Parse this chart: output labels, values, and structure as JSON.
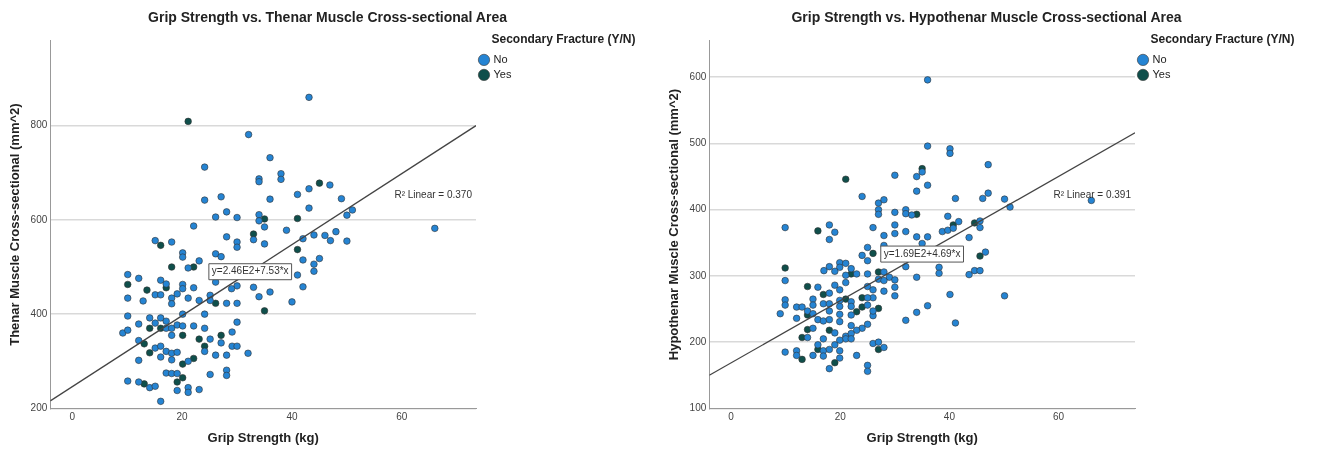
{
  "chart_data": [
    {
      "type": "scatter",
      "title": "Grip Strength vs. Thenar Muscle Cross-sectional Area",
      "xlabel": "Grip Strength (kg)",
      "ylabel": "Thenar Muscle Cross-sectional (mm^2)",
      "legend_title": "Secondary Fracture (Y/N)",
      "legend": "right",
      "grid": "y",
      "marker": "circle",
      "xlim": [
        -4,
        73.5
      ],
      "xticks": [
        0,
        20,
        40,
        60
      ],
      "ylim": [
        200,
        980
      ],
      "yticks": [
        200,
        400,
        600,
        800
      ],
      "series": [
        {
          "name": "No",
          "color": "#2584d3",
          "x": [
            43.1,
            32.1,
            36.0,
            24.1,
            34.0,
            34.0,
            38.0,
            38.0,
            46.9,
            43.1,
            41.0,
            24.1,
            27.1,
            36.0,
            43.1,
            28.1,
            26.1,
            30.0,
            34.0,
            34.0,
            22.1,
            39.0,
            28.1,
            33.0,
            30.0,
            30.0,
            35.0,
            35.0,
            42.0,
            15.1,
            18.1,
            20.1,
            20.1,
            23.1,
            26.1,
            27.1,
            21.1,
            41.0,
            10.1,
            12.1,
            16.1,
            17.1,
            20.1,
            20.1,
            22.1,
            26.1,
            30.0,
            29.0,
            33.0,
            36.0,
            10.1,
            12.9,
            15.1,
            16.1,
            18.1,
            18.1,
            19.1,
            21.1,
            23.1,
            25.1,
            25.1,
            28.1,
            30.0,
            34.0,
            40.0,
            10.1,
            12.1,
            14.1,
            9.2,
            10.1,
            12.1,
            15.1,
            16.1,
            17.1,
            17.1,
            18.1,
            18.1,
            19.1,
            20.1,
            20.1,
            22.1,
            24.1,
            24.1,
            25.1,
            27.1,
            29.1,
            30.0,
            12.1,
            15.1,
            16.1,
            16.1,
            17.1,
            18.1,
            18.1,
            19.1,
            21.1,
            24.1,
            26.1,
            28.1,
            29.1,
            30.0,
            32.0,
            10.1,
            12.1,
            14.1,
            15.1,
            17.1,
            18.1,
            19.1,
            21.1,
            21.1,
            23.1,
            25.1,
            28.1,
            28.1,
            19.1,
            16.1,
            49.0,
            50.0,
            51.0,
            46.0,
            47.0,
            48.0,
            50.0,
            44.0,
            45.0,
            44.0,
            44.0,
            42.0,
            42.0,
            66.0
          ],
          "values": [
            860,
            781,
            732,
            712,
            687,
            681,
            698,
            686,
            674,
            666,
            654,
            642,
            649,
            644,
            625,
            617,
            606,
            605,
            611,
            598,
            587,
            578,
            564,
            558,
            553,
            542,
            585,
            549,
            560,
            556,
            553,
            530,
            521,
            513,
            528,
            522,
            498,
            483,
            484,
            476,
            472,
            464,
            463,
            454,
            456,
            468,
            460,
            454,
            457,
            447,
            434,
            428,
            441,
            441,
            434,
            422,
            443,
            434,
            429,
            440,
            429,
            423,
            423,
            437,
            426,
            396,
            379,
            392,
            360,
            366,
            344,
            381,
            392,
            385,
            370,
            370,
            355,
            377,
            400,
            375,
            375,
            400,
            370,
            347,
            339,
            362,
            383,
            302,
            328,
            332,
            309,
            321,
            317,
            303,
            319,
            300,
            321,
            313,
            313,
            332,
            332,
            317,
            258,
            256,
            244,
            247,
            275,
            274,
            274,
            244,
            234,
            240,
            272,
            281,
            270,
            238,
            215,
            645,
            610,
            621,
            567,
            556,
            575,
            555,
            568,
            518,
            506,
            491,
            458,
            515,
            582
          ]
        },
        {
          "name": "Yes",
          "color": "#0f4f4b",
          "x": [
            21.1,
            45.0,
            35.0,
            41.0,
            16.1,
            18.1,
            22.1,
            10.1,
            17.1,
            13.6,
            26.1,
            35.0,
            13.1,
            14.1,
            16.1,
            20.1,
            23.1,
            27.1,
            14.1,
            20.1,
            22.1,
            24.1,
            13.1,
            19.1,
            20.1,
            41.0,
            33.0
          ],
          "values": [
            809,
            678,
            602,
            603,
            546,
            500,
            500,
            463,
            456,
            451,
            423,
            407,
            337,
            370,
            370,
            355,
            347,
            355,
            318,
            294,
            306,
            332,
            252,
            256,
            265,
            537,
            570
          ]
        },
        {
          "type": "line",
          "color": "#444444",
          "marker": "none",
          "x": [
            -4,
            73.5
          ],
          "values": [
            216,
            800
          ]
        }
      ],
      "annotations": [
        {
          "text": "y=2.46E2+7.53*x",
          "x": 32.4,
          "y": 490
        },
        "R² Linear = 0.370"
      ]
    },
    {
      "type": "scatter",
      "title": "Grip Strength vs. Hypothenar Muscle Cross-sectional Area",
      "xlabel": "Grip Strength (kg)",
      "ylabel": "Hypothenar Muscle Cross-sectional (mm^2)",
      "legend_title": "Secondary Fracture (Y/N)",
      "legend": "right",
      "grid": "y",
      "marker": "circle",
      "xlim": [
        -4,
        74
      ],
      "xticks": [
        0,
        20,
        40,
        60
      ],
      "ylim": [
        100,
        655
      ],
      "yticks": [
        100,
        200,
        300,
        400,
        500,
        600
      ],
      "series": [
        {
          "name": "No",
          "color": "#2584d3",
          "x": [
            36.0,
            36.0,
            35.0,
            34.0,
            36.0,
            34.0,
            30.0,
            24.0,
            27.0,
            28.0,
            27.0,
            27.0,
            30.0,
            32.0,
            32.0,
            33.1,
            9.9,
            18.0,
            19.0,
            18.0,
            26.0,
            30.0,
            30.0,
            32.0,
            34.0,
            36.0,
            28.0,
            28.0,
            35.0,
            25.0,
            24.0,
            25.0,
            32.0,
            19.9,
            21.0,
            22.0,
            19.9,
            18.0,
            17.0,
            19.0,
            21.0,
            21.0,
            23.0,
            25.0,
            28.0,
            29.0,
            27.0,
            28.0,
            34.0,
            30.0,
            30.0,
            30.0,
            9.9,
            15.9,
            19.0,
            18.0,
            19.9,
            25.0,
            26.0,
            25.0,
            28.0,
            26.0,
            9.9,
            9.9,
            9.0,
            12.0,
            13.0,
            14.0,
            15.0,
            15.0,
            16.9,
            18.0,
            18.0,
            19.9,
            19.9,
            22.0,
            22.0,
            25.0,
            26.0,
            26.0,
            12.0,
            15.0,
            15.9,
            16.9,
            18.0,
            19.9,
            19.9,
            22.0,
            25.0,
            24.0,
            22.0,
            23.0,
            21.0,
            21.0,
            14.0,
            15.0,
            16.9,
            19.0,
            19.9,
            22.0,
            22.0,
            9.9,
            12.0,
            12.0,
            15.9,
            15.0,
            16.9,
            16.9,
            18.0,
            19.0,
            18.0,
            19.9,
            19.9,
            23.0,
            26.0,
            27.0,
            28.0,
            25.0,
            25.0,
            32.0,
            34.0,
            36.0,
            40.1,
            40.1,
            47.1,
            41.1,
            46.1,
            47.1,
            50.1,
            51.1,
            66.0,
            39.7,
            38.7,
            39.7,
            40.7,
            41.7,
            45.6,
            45.6,
            43.6,
            38.1,
            38.1,
            43.6,
            44.6,
            45.6,
            46.6,
            40.1,
            50.1,
            41.1
          ],
          "values": [
            596,
            496,
            457,
            450,
            437,
            428,
            452,
            420,
            410,
            415,
            400,
            393,
            396,
            400,
            394,
            392,
            373,
            377,
            366,
            355,
            373,
            377,
            364,
            367,
            359,
            359,
            361,
            346,
            349,
            343,
            331,
            323,
            314,
            320,
            319,
            311,
            313,
            314,
            308,
            307,
            301,
            290,
            303,
            303,
            306,
            298,
            295,
            293,
            298,
            294,
            283,
            270,
            293,
            283,
            286,
            274,
            279,
            284,
            267,
            267,
            277,
            279,
            264,
            256,
            243,
            253,
            253,
            247,
            265,
            256,
            258,
            258,
            247,
            263,
            254,
            261,
            254,
            256,
            240,
            247,
            236,
            243,
            234,
            232,
            234,
            242,
            231,
            241,
            227,
            221,
            225,
            218,
            209,
            205,
            207,
            221,
            205,
            214,
            203,
            213,
            205,
            185,
            187,
            180,
            196,
            180,
            187,
            179,
            189,
            196,
            160,
            187,
            176,
            180,
            198,
            200,
            192,
            165,
            156,
            233,
            245,
            255,
            492,
            485,
            468,
            417,
            417,
            425,
            416,
            404,
            414,
            390,
            367,
            369,
            372,
            382,
            383,
            373,
            358,
            313,
            304,
            302,
            308,
            308,
            336,
            272,
            270,
            229
          ]
        },
        {
          "name": "Yes",
          "color": "#0f4f4b",
          "x": [
            35.0,
            21.0,
            34.0,
            15.9,
            26.0,
            22.0,
            27.0,
            9.9,
            14.0,
            24.0,
            16.9,
            21.0,
            24.0,
            27.0,
            14.0,
            18.0,
            23.0,
            14.0,
            13.0,
            13.0,
            15.9,
            19.0,
            27.0,
            40.7,
            44.6,
            45.6
          ],
          "values": [
            462,
            446,
            393,
            368,
            334,
            303,
            306,
            312,
            284,
            267,
            272,
            265,
            253,
            251,
            241,
            218,
            246,
            219,
            207,
            174,
            189,
            169,
            189,
            377,
            380,
            330
          ]
        },
        {
          "type": "line",
          "color": "#444444",
          "marker": "none",
          "x": [
            -4,
            74
          ],
          "values": [
            150,
            516
          ]
        }
      ],
      "annotations": [
        {
          "text": "y=1.69E2+4.69*x",
          "x": 35.0,
          "y": 333
        },
        "R² Linear = 0.391"
      ]
    }
  ]
}
